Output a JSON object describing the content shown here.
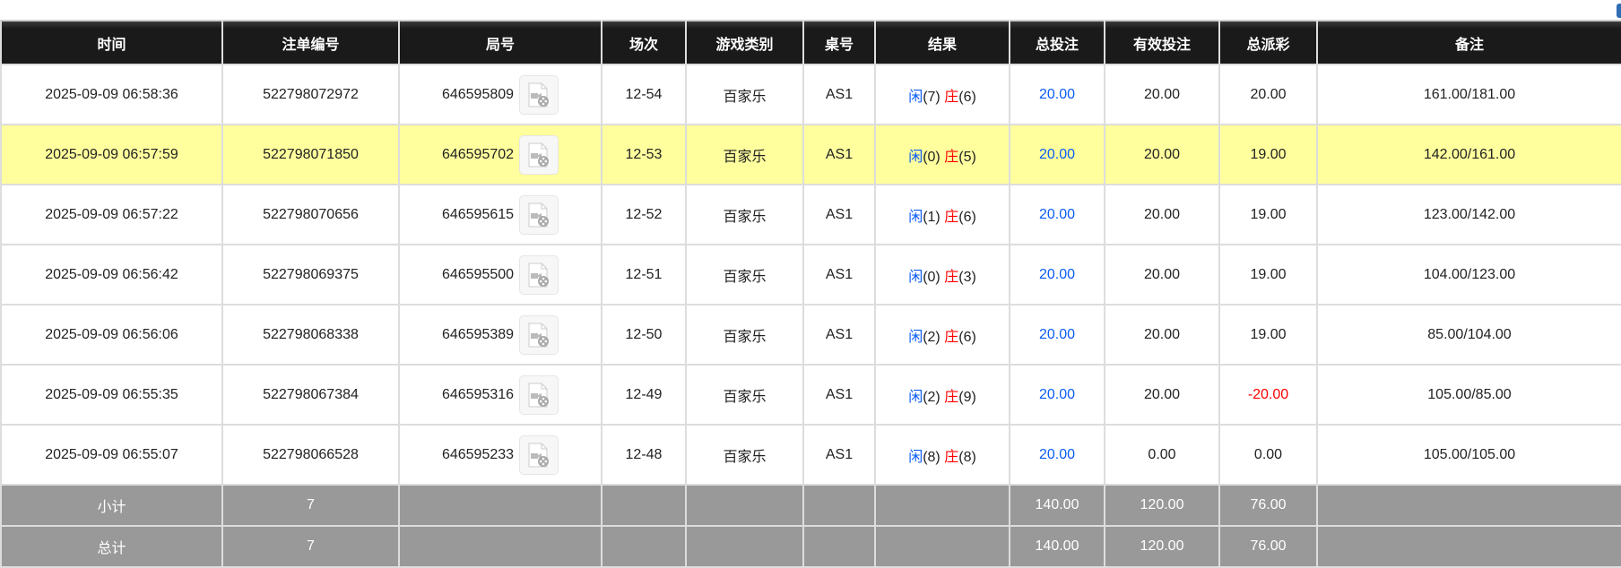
{
  "headers": [
    "时间",
    "注单编号",
    "局号",
    "场次",
    "游戏类别",
    "桌号",
    "结果",
    "总投注",
    "有效投注",
    "总派彩",
    "备注"
  ],
  "rows": [
    {
      "time": "2025-09-09 06:58:36",
      "bet_id": "522798072972",
      "round": "646595809",
      "session": "12-54",
      "game": "百家乐",
      "table": "AS1",
      "player_label": "闲",
      "player": "(7)",
      "banker_label": "庄",
      "banker": "(6)",
      "total_bet": "20.00",
      "valid_bet": "20.00",
      "payout": "20.00",
      "payout_negative": false,
      "note": "161.00/181.00",
      "highlight": false
    },
    {
      "time": "2025-09-09 06:57:59",
      "bet_id": "522798071850",
      "round": "646595702",
      "session": "12-53",
      "game": "百家乐",
      "table": "AS1",
      "player_label": "闲",
      "player": "(0)",
      "banker_label": "庄",
      "banker": "(5)",
      "total_bet": "20.00",
      "valid_bet": "20.00",
      "payout": "19.00",
      "payout_negative": false,
      "note": "142.00/161.00",
      "highlight": true
    },
    {
      "time": "2025-09-09 06:57:22",
      "bet_id": "522798070656",
      "round": "646595615",
      "session": "12-52",
      "game": "百家乐",
      "table": "AS1",
      "player_label": "闲",
      "player": "(1)",
      "banker_label": "庄",
      "banker": "(6)",
      "total_bet": "20.00",
      "valid_bet": "20.00",
      "payout": "19.00",
      "payout_negative": false,
      "note": "123.00/142.00",
      "highlight": false
    },
    {
      "time": "2025-09-09 06:56:42",
      "bet_id": "522798069375",
      "round": "646595500",
      "session": "12-51",
      "game": "百家乐",
      "table": "AS1",
      "player_label": "闲",
      "player": "(0)",
      "banker_label": "庄",
      "banker": "(3)",
      "total_bet": "20.00",
      "valid_bet": "20.00",
      "payout": "19.00",
      "payout_negative": false,
      "note": "104.00/123.00",
      "highlight": false
    },
    {
      "time": "2025-09-09 06:56:06",
      "bet_id": "522798068338",
      "round": "646595389",
      "session": "12-50",
      "game": "百家乐",
      "table": "AS1",
      "player_label": "闲",
      "player": "(2)",
      "banker_label": "庄",
      "banker": "(6)",
      "total_bet": "20.00",
      "valid_bet": "20.00",
      "payout": "19.00",
      "payout_negative": false,
      "note": "85.00/104.00",
      "highlight": false
    },
    {
      "time": "2025-09-09 06:55:35",
      "bet_id": "522798067384",
      "round": "646595316",
      "session": "12-49",
      "game": "百家乐",
      "table": "AS1",
      "player_label": "闲",
      "player": "(2)",
      "banker_label": "庄",
      "banker": "(9)",
      "total_bet": "20.00",
      "valid_bet": "20.00",
      "payout": "-20.00",
      "payout_negative": true,
      "note": "105.00/85.00",
      "highlight": false
    },
    {
      "time": "2025-09-09 06:55:07",
      "bet_id": "522798066528",
      "round": "646595233",
      "session": "12-48",
      "game": "百家乐",
      "table": "AS1",
      "player_label": "闲",
      "player": "(8)",
      "banker_label": "庄",
      "banker": "(8)",
      "total_bet": "20.00",
      "valid_bet": "0.00",
      "payout": "0.00",
      "payout_negative": false,
      "note": "105.00/105.00",
      "highlight": false
    }
  ],
  "subtotal": {
    "label": "小计",
    "count": "7",
    "total_bet": "140.00",
    "valid_bet": "120.00",
    "payout": "76.00"
  },
  "total": {
    "label": "总计",
    "count": "7",
    "total_bet": "140.00",
    "valid_bet": "120.00",
    "payout": "76.00"
  },
  "colors": {
    "header_bg": "#1a1a1a",
    "highlight_row": "#ffff9d",
    "summary_bg": "#999999",
    "player": "#0a5cf5",
    "banker": "#ff0000",
    "negative": "#ff0000"
  },
  "icons": {
    "round_replay": "video-file-icon"
  }
}
